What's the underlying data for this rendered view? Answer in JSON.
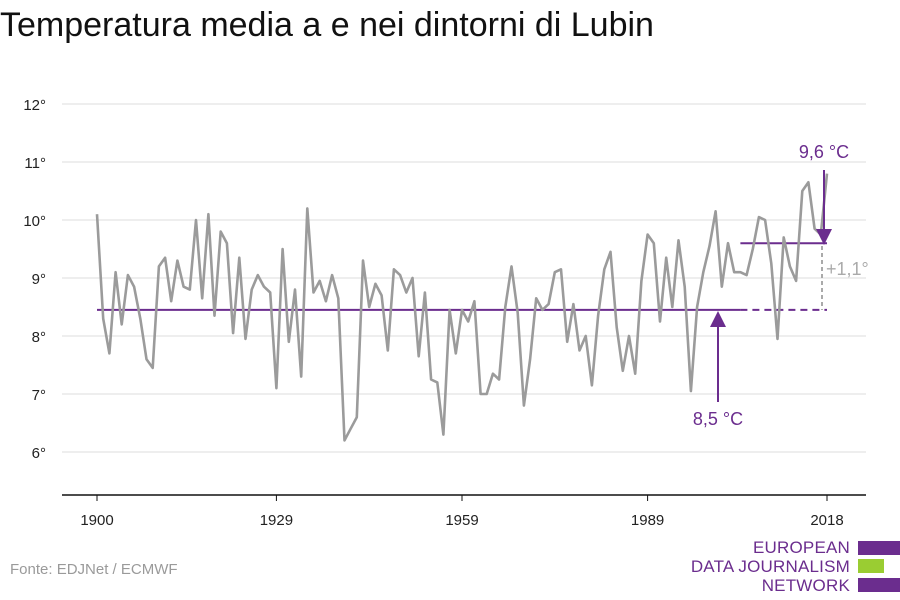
{
  "title": "Temperatura media a e nei dintorni di Lubin",
  "source": "Fonte: EDJNet / ECMWF",
  "logo": {
    "line1": "EUROPEAN",
    "line2": "DATA JOURNALISM",
    "line3": "NETWORK"
  },
  "colors": {
    "series": "#9b9b9b",
    "accent": "#6b2d8e",
    "delta": "#aaaaaa",
    "grid": "#dddddd",
    "logo_green": "#9acd32"
  },
  "annotations": {
    "baseline_label": "8,5 °C",
    "recent_label": "9,6 °C",
    "delta_label": "+1,1°"
  },
  "chart_data": {
    "type": "line",
    "title": "Temperatura media a e nei dintorni di Lubin",
    "xlabel": "",
    "ylabel": "",
    "xlim": [
      1900,
      2018
    ],
    "ylim": [
      6,
      12
    ],
    "x_ticks": [
      1900,
      1929,
      1959,
      1989,
      2018
    ],
    "y_ticks": [
      6,
      7,
      8,
      9,
      10,
      11,
      12
    ],
    "y_tick_labels": [
      "6°",
      "7°",
      "8°",
      "9°",
      "10°",
      "11°",
      "12°"
    ],
    "grid": "horizontal",
    "baseline": {
      "value": 8.45,
      "start": 1900,
      "end": 2018,
      "solid_until": 2004
    },
    "recent_average": {
      "value": 9.6,
      "start": 2004,
      "end": 2018
    },
    "x_start": 1900,
    "series": [
      {
        "values": [
          10.1,
          8.3,
          7.7,
          9.1,
          8.2,
          9.05,
          8.85,
          8.3,
          7.6,
          7.45,
          9.2,
          9.35,
          8.6,
          9.3,
          8.85,
          8.8,
          10.0,
          8.65,
          10.1,
          8.35,
          9.8,
          9.6,
          8.05,
          9.35,
          7.95,
          8.8,
          9.05,
          8.85,
          8.75,
          7.1,
          9.5,
          7.9,
          8.8,
          7.3,
          10.2,
          8.75,
          8.95,
          8.6,
          9.05,
          8.65,
          6.2,
          6.4,
          6.6,
          9.3,
          8.5,
          8.9,
          8.7,
          7.75,
          9.15,
          9.05,
          8.75,
          9.0,
          7.65,
          8.75,
          7.25,
          7.2,
          6.3,
          8.45,
          7.7,
          8.45,
          8.25,
          8.6,
          7.0,
          7.0,
          7.35,
          7.25,
          8.5,
          9.2,
          8.4,
          6.8,
          7.6,
          8.65,
          8.45,
          8.55,
          9.1,
          9.15,
          7.9,
          8.55,
          7.75,
          8.0,
          7.15,
          8.35,
          9.15,
          9.45,
          8.15,
          7.4,
          8.0,
          7.35,
          8.95,
          9.75,
          9.6,
          8.25,
          9.35,
          8.5,
          9.65,
          8.85,
          7.05,
          8.5,
          9.1,
          9.55,
          10.15,
          8.85,
          9.6,
          9.1,
          9.1,
          9.05,
          9.5,
          10.05,
          10.0,
          9.25,
          7.95,
          9.7,
          9.2,
          8.95,
          10.5,
          10.65,
          9.85,
          9.75,
          10.8
        ]
      }
    ]
  }
}
